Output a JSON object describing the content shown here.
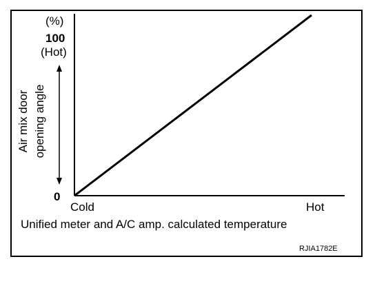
{
  "chart_data": {
    "type": "line",
    "title": "",
    "y_unit": "(%)",
    "ylabel": "Air mix door\nopening angle",
    "xlabel": "Unified meter and A/C amp. calculated temperature",
    "y_ticks": {
      "min": "0",
      "max": "100",
      "max_label": "(Hot)"
    },
    "x_ticks": {
      "min": "Cold",
      "max": "Hot"
    },
    "ylim": [
      0,
      100
    ],
    "x": [
      0,
      1
    ],
    "values": [
      0,
      100
    ],
    "grid": false
  },
  "figure_code": "RJIA1782E"
}
